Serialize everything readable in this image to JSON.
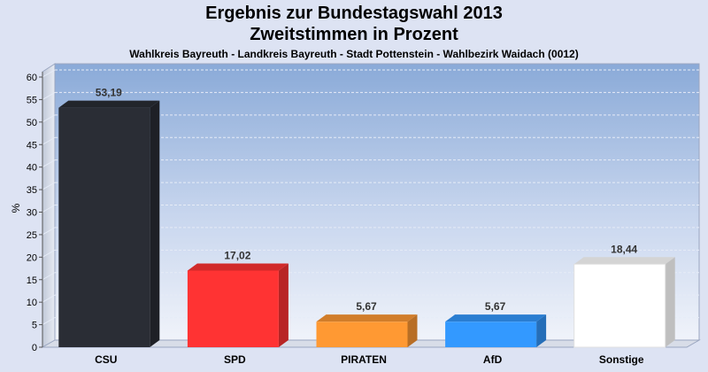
{
  "chart_data": {
    "type": "bar",
    "title": "Ergebnis zur Bundestagswahl 2013",
    "subtitle": "Zweitstimmen in Prozent",
    "caption": "Wahlkreis Bayreuth - Landkreis Bayreuth - Stadt Pottenstein - Wahlbezirk Waidach (0012)",
    "ylabel": "%",
    "ylim": [
      0,
      60
    ],
    "yticks": [
      0,
      5,
      10,
      15,
      20,
      25,
      30,
      35,
      40,
      45,
      50,
      55,
      60
    ],
    "categories": [
      "CSU",
      "SPD",
      "PIRATEN",
      "AfD",
      "Sonstige"
    ],
    "values": [
      53.19,
      17.02,
      5.67,
      5.67,
      18.44
    ],
    "value_labels": [
      "53,19",
      "17,02",
      "5,67",
      "5,67",
      "18,44"
    ],
    "colors": [
      "#2a2d35",
      "#ff3333",
      "#ff9933",
      "#3399ff",
      "#ffffff"
    ],
    "grid": true,
    "legend": "none"
  }
}
